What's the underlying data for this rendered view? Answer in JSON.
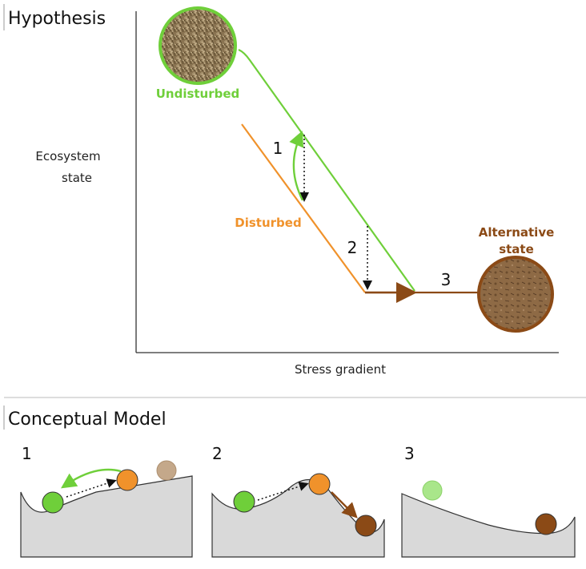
{
  "hypothesis": {
    "title": "Hypothesis",
    "y_label_line1": "Ecosystem",
    "y_label_line2": "state",
    "x_label": "Stress gradient",
    "undisturbed_label": "Undisturbed",
    "disturbed_label": "Disturbed",
    "alternative_line1": "Alternative",
    "alternative_line2": "state",
    "step1": "1",
    "step2": "2",
    "step3": "3"
  },
  "conceptual": {
    "title": "Conceptual Model",
    "panel1_label": "1",
    "panel2_label": "2",
    "panel3_label": "3"
  },
  "colors": {
    "undisturbed": "#6fcf3a",
    "disturbed": "#f0922b",
    "alternative": "#8b4a16",
    "ground": "#d9d9d9"
  }
}
